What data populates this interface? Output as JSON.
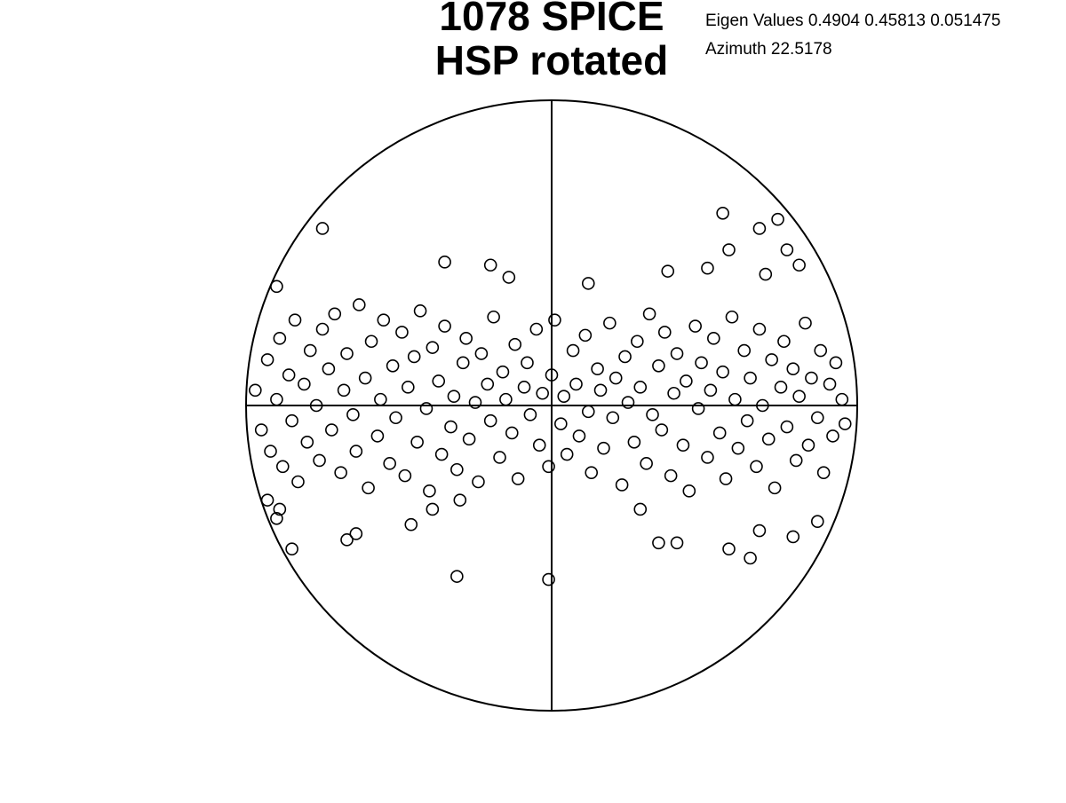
{
  "chart_data": {
    "type": "scatter",
    "title": [
      "1078 SPICE",
      "HSP rotated"
    ],
    "annotations": [
      "Eigen Values 0.4904  0.45813  0.051475",
      "Azimuth 22.5178"
    ],
    "xlim": [
      -1,
      1
    ],
    "ylim": [
      -1,
      1
    ],
    "color": "#000000",
    "x": [
      -0.75,
      -0.35,
      -0.2,
      -0.14,
      0.56,
      0.68,
      0.74,
      0.58,
      0.77,
      0.81,
      0.7,
      0.51,
      0.38,
      0.12,
      -0.9,
      -0.31,
      -0.01,
      -0.85,
      -0.67,
      -0.64,
      -0.46,
      0.35,
      0.41,
      0.58,
      0.65,
      0.68,
      0.79,
      0.87,
      0.29,
      -0.9,
      -0.93,
      -0.89,
      -0.39,
      -0.3,
      -0.97,
      -0.95,
      -0.93,
      -0.92,
      -0.9,
      -0.89,
      -0.88,
      -0.86,
      -0.85,
      -0.84,
      -0.83,
      -0.81,
      -0.8,
      -0.79,
      -0.77,
      -0.76,
      -0.75,
      -0.73,
      -0.72,
      -0.71,
      -0.69,
      -0.68,
      -0.67,
      -0.65,
      -0.64,
      -0.63,
      -0.61,
      -0.6,
      -0.59,
      -0.57,
      -0.56,
      -0.55,
      -0.53,
      -0.52,
      -0.51,
      -0.49,
      -0.48,
      -0.47,
      -0.45,
      -0.44,
      -0.43,
      -0.41,
      -0.4,
      -0.39,
      -0.37,
      -0.36,
      -0.35,
      -0.33,
      -0.32,
      -0.31,
      -0.29,
      -0.28,
      -0.27,
      -0.25,
      -0.24,
      -0.23,
      -0.21,
      -0.2,
      -0.19,
      -0.17,
      -0.16,
      -0.15,
      -0.13,
      -0.12,
      -0.11,
      -0.09,
      -0.08,
      -0.07,
      -0.05,
      -0.04,
      -0.03,
      -0.01,
      0.0,
      0.01,
      0.03,
      0.04,
      0.05,
      0.07,
      0.08,
      0.09,
      0.11,
      0.12,
      0.13,
      0.15,
      0.16,
      0.17,
      0.19,
      0.2,
      0.21,
      0.23,
      0.24,
      0.25,
      0.27,
      0.28,
      0.29,
      0.31,
      0.32,
      0.33,
      0.35,
      0.36,
      0.37,
      0.39,
      0.4,
      0.41,
      0.43,
      0.44,
      0.45,
      0.47,
      0.48,
      0.49,
      0.51,
      0.52,
      0.53,
      0.55,
      0.56,
      0.57,
      0.59,
      0.6,
      0.61,
      0.63,
      0.64,
      0.65,
      0.67,
      0.68,
      0.69,
      0.71,
      0.72,
      0.73,
      0.75,
      0.76,
      0.77,
      0.79,
      0.8,
      0.81,
      0.83,
      0.84,
      0.85,
      0.87,
      0.88,
      0.89,
      0.91,
      0.92,
      0.93,
      0.95,
      0.96
    ],
    "values": [
      0.58,
      0.47,
      0.46,
      0.42,
      0.63,
      0.58,
      0.61,
      0.51,
      0.51,
      0.46,
      0.43,
      0.45,
      0.44,
      0.4,
      0.39,
      -0.56,
      -0.57,
      -0.47,
      -0.44,
      -0.42,
      -0.39,
      -0.45,
      -0.45,
      -0.47,
      -0.5,
      -0.41,
      -0.43,
      -0.38,
      -0.34,
      -0.37,
      -0.31,
      -0.34,
      -0.34,
      -0.31,
      0.05,
      -0.08,
      0.15,
      -0.15,
      0.02,
      0.22,
      -0.2,
      0.1,
      -0.05,
      0.28,
      -0.25,
      0.07,
      -0.12,
      0.18,
      0.0,
      -0.18,
      0.25,
      0.12,
      -0.08,
      0.3,
      -0.22,
      0.05,
      0.17,
      -0.03,
      -0.15,
      0.33,
      0.09,
      -0.27,
      0.21,
      -0.1,
      0.02,
      0.28,
      -0.19,
      0.13,
      -0.04,
      0.24,
      -0.23,
      0.06,
      0.16,
      -0.12,
      0.31,
      -0.01,
      -0.28,
      0.19,
      0.08,
      -0.16,
      0.26,
      -0.07,
      0.03,
      -0.21,
      0.14,
      0.22,
      -0.11,
      0.01,
      -0.25,
      0.17,
      0.07,
      -0.05,
      0.29,
      -0.17,
      0.11,
      0.02,
      -0.09,
      0.2,
      -0.24,
      0.06,
      0.14,
      -0.03,
      0.25,
      -0.13,
      0.04,
      -0.2,
      0.1,
      0.28,
      -0.06,
      0.03,
      -0.16,
      0.18,
      0.07,
      -0.1,
      0.23,
      -0.02,
      -0.22,
      0.12,
      0.05,
      -0.14,
      0.27,
      -0.04,
      0.09,
      -0.26,
      0.16,
      0.01,
      -0.12,
      0.21,
      0.06,
      -0.19,
      0.3,
      -0.03,
      0.13,
      -0.08,
      0.24,
      -0.23,
      0.04,
      0.17,
      -0.13,
      0.08,
      -0.28,
      0.26,
      -0.01,
      0.14,
      -0.17,
      0.05,
      0.22,
      -0.09,
      0.11,
      -0.24,
      0.29,
      0.02,
      -0.14,
      0.18,
      -0.05,
      0.09,
      -0.2,
      0.25,
      0.0,
      -0.11,
      0.15,
      -0.27,
      0.06,
      0.21,
      -0.07,
      0.12,
      -0.18,
      0.03,
      0.27,
      -0.13,
      0.09,
      -0.04,
      0.18,
      -0.22,
      0.07,
      -0.1,
      0.14,
      0.02,
      -0.06
    ]
  }
}
